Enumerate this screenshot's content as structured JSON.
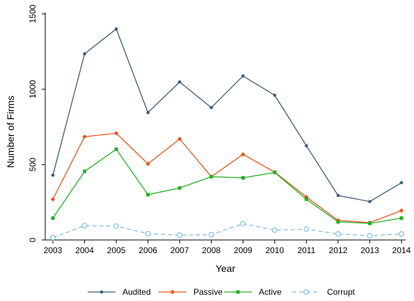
{
  "chart_data": {
    "type": "line",
    "xlabel": "Year",
    "ylabel": "Number of Firms",
    "x": [
      2003,
      2004,
      2005,
      2006,
      2007,
      2008,
      2009,
      2010,
      2011,
      2012,
      2013,
      2014
    ],
    "ylim": [
      0,
      1500
    ],
    "yticks": [
      0,
      500,
      1000,
      1500
    ],
    "legend_position": "bottom",
    "grid": false,
    "series": [
      {
        "name": "Audited",
        "color": "#3d5a78",
        "marker": "dot",
        "dash": false,
        "values": [
          430,
          1235,
          1400,
          845,
          1048,
          878,
          1088,
          960,
          625,
          295,
          255,
          380
        ]
      },
      {
        "name": "Passive",
        "color": "#e8541b",
        "marker": "diamond",
        "dash": false,
        "values": [
          270,
          685,
          708,
          505,
          670,
          420,
          568,
          450,
          285,
          130,
          115,
          195
        ]
      },
      {
        "name": "Active",
        "color": "#22b022",
        "marker": "square",
        "dash": false,
        "values": [
          145,
          455,
          602,
          300,
          345,
          420,
          412,
          448,
          270,
          120,
          110,
          145
        ]
      },
      {
        "name": "Corrupt",
        "color": "#7fbfe0",
        "marker": "circle",
        "dash": true,
        "values": [
          15,
          95,
          92,
          42,
          32,
          35,
          108,
          65,
          72,
          40,
          28,
          40
        ]
      }
    ]
  }
}
